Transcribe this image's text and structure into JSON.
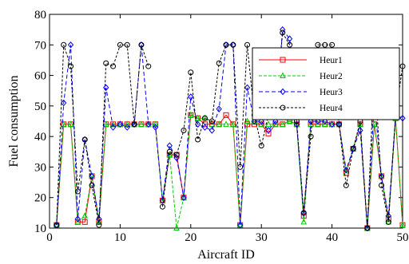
{
  "chart_data": {
    "type": "line",
    "xlabel": "Aircraft ID",
    "ylabel": "Fuel consumption",
    "xlim": [
      0,
      50
    ],
    "ylim": [
      10,
      80
    ],
    "xticks": [
      "0",
      "10",
      "20",
      "30",
      "40",
      "50"
    ],
    "yticks": [
      "10",
      "20",
      "30",
      "40",
      "50",
      "60",
      "70",
      "80"
    ],
    "grid": false,
    "legend_position": "top-right",
    "x": [
      1,
      2,
      3,
      4,
      5,
      6,
      7,
      8,
      9,
      10,
      11,
      12,
      13,
      14,
      15,
      16,
      17,
      18,
      19,
      20,
      21,
      22,
      23,
      24,
      25,
      26,
      27,
      28,
      29,
      30,
      31,
      32,
      33,
      34,
      35,
      36,
      37,
      38,
      39,
      40,
      41,
      42,
      43,
      44,
      45,
      46,
      47,
      48,
      49,
      50
    ],
    "series": [
      {
        "name": "Heur1",
        "color": "#ff0000",
        "dash": "",
        "marker": "square",
        "values": [
          11,
          44,
          44,
          12,
          12,
          27,
          12,
          44,
          44,
          44,
          44,
          44,
          44,
          44,
          44,
          19,
          34,
          34,
          20,
          47,
          46,
          44,
          44,
          44,
          47,
          44,
          11,
          44,
          44,
          44,
          41,
          44,
          44,
          45,
          44,
          14,
          44,
          44,
          44,
          44,
          44,
          28,
          36,
          44,
          10,
          44,
          27,
          13,
          46,
          11
        ]
      },
      {
        "name": "Heur2",
        "color": "#00cc00",
        "dash": "4,2",
        "marker": "triangle",
        "values": [
          11,
          44,
          44,
          12,
          14,
          27,
          12,
          44,
          44,
          44,
          44,
          44,
          44,
          44,
          44,
          19,
          34,
          10,
          20,
          47,
          46,
          46,
          44,
          44,
          44,
          44,
          11,
          45,
          45,
          44,
          44,
          44,
          44,
          45,
          44,
          12,
          44,
          44,
          44,
          44,
          44,
          28,
          36,
          44,
          10,
          44,
          27,
          12,
          46,
          11
        ]
      },
      {
        "name": "Heur3",
        "color": "#0000ff",
        "dash": "5,3",
        "marker": "diamond",
        "values": [
          11,
          51,
          70,
          13,
          39,
          27,
          13,
          56,
          43,
          44,
          43,
          44,
          70,
          44,
          43,
          19,
          37,
          33,
          20,
          53,
          44,
          43,
          42,
          49,
          70,
          70,
          11,
          56,
          45,
          45,
          42,
          45,
          75,
          72,
          44,
          15,
          45,
          45,
          45,
          44,
          44,
          29,
          36,
          42,
          10,
          52,
          27,
          14,
          47,
          46
        ]
      },
      {
        "name": "Heur4",
        "color": "#000000",
        "dash": "3,2",
        "marker": "circle",
        "values": [
          11,
          70,
          63,
          22,
          39,
          24,
          11,
          64,
          63,
          70,
          70,
          44,
          70,
          63,
          null,
          17,
          35,
          34,
          42,
          61,
          39,
          46,
          45,
          64,
          70,
          70,
          30,
          70,
          47,
          37,
          47,
          47,
          74,
          70,
          45,
          15,
          40,
          70,
          70,
          70,
          44,
          24,
          36,
          45,
          10,
          63,
          24,
          12,
          47,
          63
        ]
      }
    ]
  }
}
